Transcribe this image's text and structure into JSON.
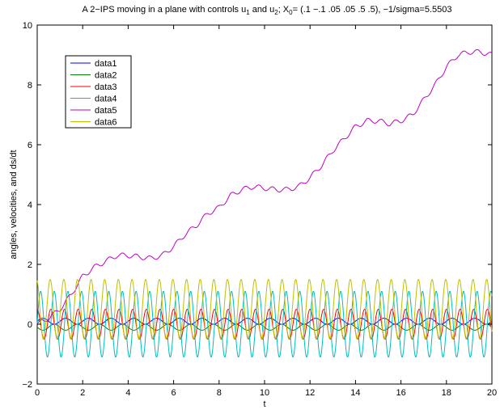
{
  "chart_data": {
    "type": "line",
    "title": "A 2−IPS moving in a plane with controls u1 and u2; X0= (.1 −.1 .05 .05 .5 .5), −1/sigma=5.5503",
    "title_parts": {
      "prefix": "A 2−IPS moving in a plane with controls u",
      "sub1": "1",
      "mid1": " and u",
      "sub2": "2",
      "mid2": "; X",
      "sub3": "0",
      "suffix": "= (.1 −.1 .05 .05 .5 .5), −1/sigma=5.5503"
    },
    "xlabel": "t",
    "ylabel": "angles, velocities, and ds/dt",
    "xlim": [
      0,
      20
    ],
    "ylim": [
      -2,
      10
    ],
    "xticks": [
      0,
      2,
      4,
      6,
      8,
      10,
      12,
      14,
      16,
      18,
      20
    ],
    "xtick_labels": [
      "0",
      "2",
      "4",
      "6",
      "8",
      "10",
      "12",
      "14",
      "16",
      "18",
      "20"
    ],
    "yticks": [
      -2,
      0,
      2,
      4,
      6,
      8,
      10
    ],
    "ytick_labels": [
      "−2",
      "0",
      "2",
      "4",
      "6",
      "8",
      "10"
    ],
    "grid": false,
    "legend_position": "top-left",
    "series": [
      {
        "name": "data1",
        "color": "#0000ff",
        "x": [
          0,
          1,
          2,
          3,
          4,
          5,
          6,
          7,
          8,
          9,
          10,
          11,
          12,
          13,
          14,
          15,
          16,
          17,
          18,
          19,
          20
        ],
        "y": [
          0.1,
          0.1,
          0.1,
          0.1,
          0.1,
          0.1,
          0.1,
          0.1,
          0.1,
          0.1,
          0.1,
          0.1,
          0.1,
          0.1,
          0.1,
          0.1,
          0.1,
          0.1,
          0.1,
          0.1,
          0.1
        ],
        "wave": {
          "amplitude": 0.1,
          "period": 1.0,
          "phase": 0,
          "step": 0.03
        }
      },
      {
        "name": "data2",
        "color": "#008000",
        "x": [
          0,
          1,
          2,
          3,
          4,
          5,
          6,
          7,
          8,
          9,
          10,
          11,
          12,
          13,
          14,
          15,
          16,
          17,
          18,
          19,
          20
        ],
        "y": [
          -0.1,
          -0.1,
          -0.1,
          -0.1,
          -0.1,
          -0.1,
          -0.1,
          -0.1,
          -0.1,
          -0.1,
          -0.1,
          -0.1,
          -0.1,
          -0.1,
          -0.1,
          -0.1,
          -0.1,
          -0.1,
          -0.1,
          -0.1,
          -0.1
        ],
        "wave": {
          "amplitude": 0.1,
          "period": 1.0,
          "phase": 0.5,
          "step": 0.03
        }
      },
      {
        "name": "data3",
        "color": "#ff0000",
        "x": [
          0,
          1,
          2,
          3,
          4,
          5,
          6,
          7,
          8,
          9,
          10,
          11,
          12,
          13,
          14,
          15,
          16,
          17,
          18,
          19,
          20
        ],
        "y": [
          0,
          0,
          0,
          0,
          0,
          0,
          0,
          0,
          0,
          0,
          0,
          0,
          0,
          0,
          0,
          0,
          0,
          0,
          0,
          0,
          0
        ],
        "wave": {
          "amplitude": 0.5,
          "period": 0.6,
          "phase": 0.25,
          "step": 0.02
        }
      },
      {
        "name": "data4",
        "color": "#00bfbf",
        "x": [
          0,
          1,
          2,
          3,
          4,
          5,
          6,
          7,
          8,
          9,
          10,
          11,
          12,
          13,
          14,
          15,
          16,
          17,
          18,
          19,
          20
        ],
        "y": [
          0,
          0,
          0,
          0,
          0,
          0,
          0,
          0,
          0,
          0,
          0,
          0,
          0,
          0,
          0,
          0,
          0,
          0,
          0,
          0,
          0
        ],
        "wave": {
          "amplitude": 1.1,
          "period": 0.6,
          "phase": 0.0,
          "step": 0.02
        }
      },
      {
        "name": "data5",
        "color": "#bf00bf",
        "x": [
          0,
          0.5,
          1.0,
          1.5,
          2.0,
          2.5,
          3.0,
          3.5,
          4.0,
          4.5,
          5.0,
          5.5,
          6.0,
          6.5,
          7.0,
          7.5,
          8.0,
          8.5,
          9.0,
          9.5,
          10.0,
          10.5,
          11.0,
          11.5,
          12.0,
          12.5,
          13.0,
          13.5,
          14.0,
          14.5,
          15.0,
          15.5,
          16.0,
          16.5,
          17.0,
          17.5,
          18.0,
          18.5,
          19.0,
          19.5,
          20.0
        ],
        "y": [
          0.0,
          0.2,
          0.5,
          1.0,
          1.6,
          1.9,
          2.1,
          2.3,
          2.3,
          2.25,
          2.2,
          2.3,
          2.6,
          3.0,
          3.3,
          3.7,
          3.9,
          4.3,
          4.5,
          4.6,
          4.55,
          4.5,
          4.5,
          4.6,
          4.9,
          5.3,
          5.8,
          6.2,
          6.6,
          6.8,
          6.8,
          6.7,
          6.8,
          7.0,
          7.5,
          8.0,
          8.6,
          9.0,
          9.1,
          9.1,
          9.0
        ],
        "wave": {
          "amplitude": 0.08,
          "period": 0.6,
          "phase": 0.0,
          "step": 0.02
        }
      },
      {
        "name": "data6",
        "color": "#bfbf00",
        "x": [
          0,
          1,
          2,
          3,
          4,
          5,
          6,
          7,
          8,
          9,
          10,
          11,
          12,
          13,
          14,
          15,
          16,
          17,
          18,
          19,
          20
        ],
        "y": [
          0.5,
          0.5,
          0.5,
          0.5,
          0.5,
          0.5,
          0.5,
          0.5,
          0.5,
          0.5,
          0.5,
          0.5,
          0.5,
          0.5,
          0.5,
          0.5,
          0.5,
          0.5,
          0.5,
          0.5,
          0.5
        ],
        "wave": {
          "amplitude": 1.0,
          "period": 0.6,
          "phase": 0.3,
          "step": 0.02
        }
      }
    ]
  }
}
